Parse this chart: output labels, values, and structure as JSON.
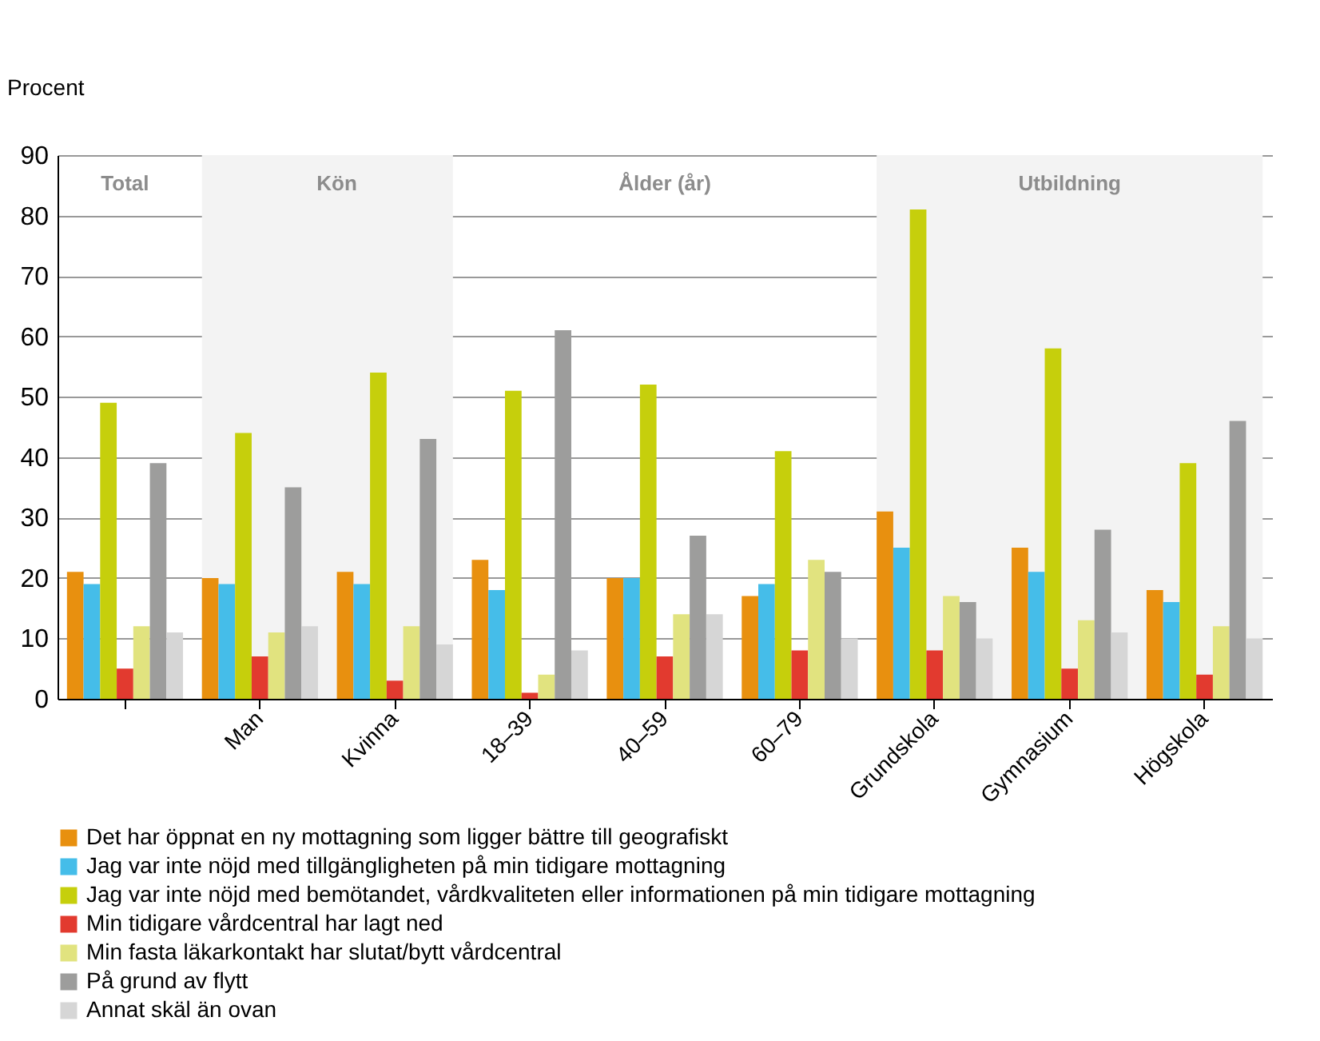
{
  "chart_data": {
    "type": "bar",
    "ylabel": "Procent",
    "categories": [
      null,
      "Man",
      "Kvinna",
      "18–39",
      "40–59",
      "60–79",
      "Grundskola",
      "Gymnasium",
      "Högskola"
    ],
    "series": [
      {
        "name": "Det har öppnat en ny mottagning som ligger bättre till geografiskt",
        "color": "#e8900f",
        "values": [
          21,
          20,
          21,
          23,
          20,
          17,
          31,
          25,
          18
        ]
      },
      {
        "name": "Jag var inte nöjd med tillgängligheten på min tidigare mottagning",
        "color": "#45bde9",
        "values": [
          19,
          19,
          19,
          18,
          20,
          19,
          25,
          21,
          16
        ]
      },
      {
        "name": "Jag var inte nöjd med bemötandet, vårdkvaliteten eller informationen på min tidigare mottagning",
        "color": "#c6cf0c",
        "values": [
          49,
          44,
          54,
          51,
          52,
          41,
          81,
          58,
          39
        ]
      },
      {
        "name": "Min tidigare vårdcentral har lagt ned",
        "color": "#e23a2f",
        "values": [
          5,
          7,
          3,
          1,
          7,
          8,
          8,
          5,
          4
        ]
      },
      {
        "name": "Min fasta läkarkontakt har slutat/bytt vårdcentral",
        "color": "#e1e37f",
        "values": [
          12,
          11,
          12,
          4,
          14,
          23,
          17,
          13,
          12
        ]
      },
      {
        "name": "På grund av flytt",
        "color": "#9d9d9c",
        "values": [
          39,
          35,
          43,
          61,
          27,
          21,
          16,
          28,
          46
        ]
      },
      {
        "name": "Annat skäl än ovan",
        "color": "#d6d6d6",
        "values": [
          11,
          12,
          9,
          8,
          14,
          10,
          10,
          11,
          10
        ]
      }
    ],
    "ylim": [
      0,
      90
    ],
    "yticks": [
      0,
      10,
      20,
      30,
      40,
      50,
      60,
      70,
      80,
      90
    ],
    "grid": "y",
    "legend": "bottom left",
    "bands": [
      {
        "axis": "x",
        "from": "Man",
        "to": "Kvinna",
        "label": "Kön",
        "color": "#f3f3f3"
      },
      {
        "axis": "x",
        "from": "Grundskola",
        "to": "Högskola",
        "label": "Utbildning",
        "color": "#f3f3f3"
      }
    ],
    "annotations": [
      "Total",
      "Ålder (år)"
    ]
  }
}
